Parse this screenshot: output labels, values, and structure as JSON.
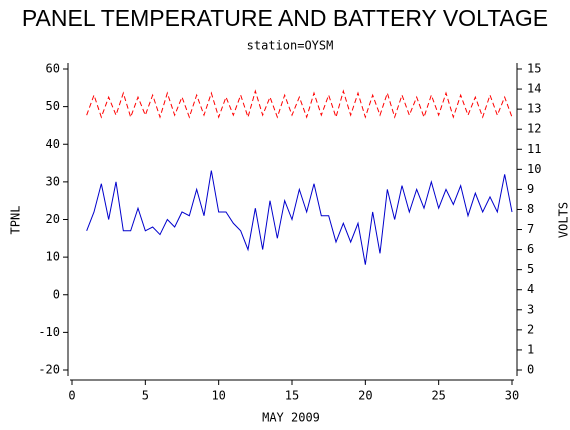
{
  "chart_data": {
    "type": "line",
    "title": "PANEL TEMPERATURE AND BATTERY VOLTAGE",
    "subtitle": "station=OYSM",
    "x_label": "MAY 2009",
    "y_label": "TPNL",
    "y2_label": "VOLTS",
    "x": [
      1,
      1.5,
      2,
      2.5,
      3,
      3.5,
      4,
      4.5,
      5,
      5.5,
      6,
      6.5,
      7,
      7.5,
      8,
      8.5,
      9,
      9.5,
      10,
      10.5,
      11,
      11.5,
      12,
      12.5,
      13,
      13.5,
      14,
      14.5,
      15,
      15.5,
      16,
      16.5,
      17,
      17.5,
      18,
      18.5,
      19,
      19.5,
      20,
      20.5,
      21,
      21.5,
      22,
      22.5,
      23,
      23.5,
      24,
      24.5,
      25,
      25.5,
      26,
      26.5,
      27,
      27.5,
      28,
      28.5,
      29,
      29.5,
      30
    ],
    "xlim": [
      0,
      30
    ],
    "xticks": [
      0,
      5,
      10,
      15,
      20,
      25,
      30
    ],
    "ylim": [
      -20,
      60
    ],
    "yticks": [
      -20,
      -10,
      0,
      10,
      20,
      30,
      40,
      50,
      60
    ],
    "y2lim": [
      0,
      15
    ],
    "y2ticks": [
      0,
      1,
      2,
      3,
      4,
      5,
      6,
      7,
      8,
      9,
      10,
      11,
      12,
      13,
      14,
      15
    ],
    "series": [
      {
        "color": "#0000cc",
        "dashed": false,
        "values": [
          17,
          22,
          29.5,
          20,
          30,
          17,
          17,
          23,
          17,
          18,
          16,
          20,
          18,
          22,
          21,
          28,
          21,
          33,
          22,
          22,
          19,
          17,
          12,
          23,
          12,
          25,
          15,
          25,
          20,
          28,
          22,
          29.5,
          21,
          21,
          14,
          19,
          14,
          19,
          8,
          22,
          11,
          28,
          20,
          29,
          22,
          28,
          23,
          30,
          23,
          28,
          24,
          29,
          21,
          27,
          22,
          26,
          22,
          32,
          22
        ]
      },
      {
        "color": "#ff0000",
        "dashed": true,
        "axis": "y2",
        "values": [
          12.7,
          13.7,
          12.6,
          13.6,
          12.7,
          13.8,
          12.6,
          13.6,
          12.7,
          13.7,
          12.6,
          13.8,
          12.7,
          13.6,
          12.6,
          13.7,
          12.7,
          13.8,
          12.6,
          13.6,
          12.7,
          13.7,
          12.6,
          13.9,
          12.7,
          13.6,
          12.6,
          13.7,
          12.7,
          13.6,
          12.6,
          13.8,
          12.7,
          13.7,
          12.6,
          13.9,
          12.7,
          13.8,
          12.6,
          13.7,
          12.7,
          13.8,
          12.6,
          13.7,
          12.7,
          13.6,
          12.6,
          13.7,
          12.7,
          13.8,
          12.6,
          13.7,
          12.7,
          13.6,
          12.6,
          13.7,
          12.7,
          13.6,
          12.6
        ]
      }
    ]
  }
}
